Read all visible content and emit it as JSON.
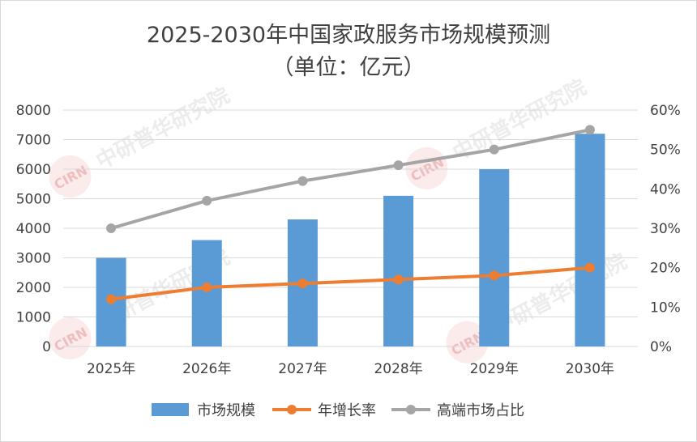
{
  "title": "2025-2030年中国家政服务市场规模预测",
  "subtitle": "（单位：亿元）",
  "watermark_text": "中研普华研究院",
  "watermark_logo": "CIRN",
  "colors": {
    "bar": "#5b9bd5",
    "growth": "#ed7d31",
    "share": "#a5a5a5",
    "grid": "#d9d9d9",
    "text": "#404040"
  },
  "chart_data": {
    "type": "bar",
    "categories": [
      "2025年",
      "2026年",
      "2027年",
      "2028年",
      "2029年",
      "2030年"
    ],
    "series": [
      {
        "name": "市场规模",
        "type": "bar",
        "axis": "left",
        "values": [
          3000,
          3600,
          4300,
          5100,
          6000,
          7200
        ]
      },
      {
        "name": "年增长率",
        "type": "line",
        "axis": "right",
        "values": [
          0.12,
          0.15,
          0.16,
          0.17,
          0.18,
          0.2
        ]
      },
      {
        "name": "高端市场占比",
        "type": "line",
        "axis": "right",
        "values": [
          0.3,
          0.37,
          0.42,
          0.46,
          0.5,
          0.55
        ]
      }
    ],
    "left_axis": {
      "min": 0,
      "max": 8000,
      "step": 1000,
      "ticks": [
        "0",
        "1000",
        "2000",
        "3000",
        "4000",
        "5000",
        "6000",
        "7000",
        "8000"
      ]
    },
    "right_axis": {
      "min": 0,
      "max": 0.6,
      "step": 0.1,
      "ticks": [
        "0%",
        "10%",
        "20%",
        "30%",
        "40%",
        "50%",
        "60%"
      ]
    },
    "grid": true,
    "legend_position": "bottom"
  }
}
